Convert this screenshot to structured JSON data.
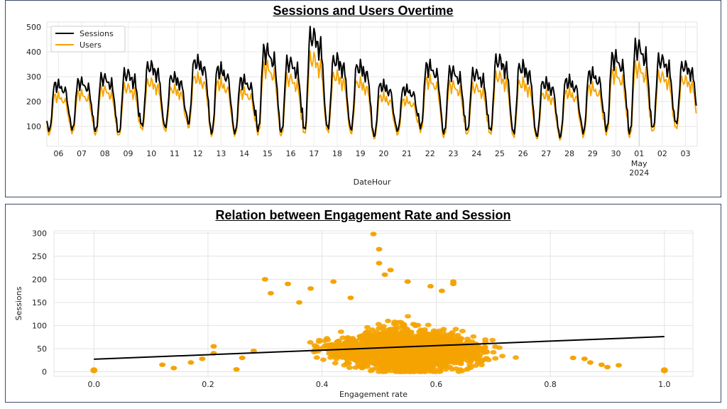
{
  "chart_data": [
    {
      "type": "line",
      "title": "Sessions and Users Overtime",
      "xlabel": "DateHour",
      "ylabel": "",
      "ylim": [
        20,
        520
      ],
      "yticks": [
        100,
        200,
        300,
        400,
        500
      ],
      "xticks": [
        "06",
        "07",
        "08",
        "09",
        "10",
        "11",
        "12",
        "13",
        "14",
        "15",
        "16",
        "17",
        "18",
        "19",
        "20",
        "21",
        "22",
        "23",
        "24",
        "25",
        "26",
        "27",
        "28",
        "29",
        "30",
        "01",
        "02",
        "03"
      ],
      "x_extra_labels": [
        "May",
        "2024"
      ],
      "legend": "top-left",
      "grid": true,
      "series": [
        {
          "name": "Sessions",
          "color": "#000000",
          "daily_values": [
            {
              "date": "06",
              "min": 80,
              "peak": 290
            },
            {
              "date": "07",
              "min": 85,
              "peak": 300
            },
            {
              "date": "08",
              "min": 80,
              "peak": 320
            },
            {
              "date": "09",
              "min": 70,
              "peak": 340
            },
            {
              "date": "10",
              "min": 100,
              "peak": 370
            },
            {
              "date": "11",
              "min": 95,
              "peak": 320
            },
            {
              "date": "12",
              "min": 110,
              "peak": 390
            },
            {
              "date": "13",
              "min": 70,
              "peak": 360
            },
            {
              "date": "14",
              "min": 70,
              "peak": 310
            },
            {
              "date": "15",
              "min": 80,
              "peak": 440
            },
            {
              "date": "16",
              "min": 75,
              "peak": 390
            },
            {
              "date": "17",
              "min": 80,
              "peak": 510
            },
            {
              "date": "18",
              "min": 90,
              "peak": 400
            },
            {
              "date": "19",
              "min": 85,
              "peak": 370
            },
            {
              "date": "20",
              "min": 60,
              "peak": 290
            },
            {
              "date": "21",
              "min": 80,
              "peak": 270
            },
            {
              "date": "22",
              "min": 90,
              "peak": 370
            },
            {
              "date": "23",
              "min": 70,
              "peak": 350
            },
            {
              "date": "24",
              "min": 80,
              "peak": 340
            },
            {
              "date": "25",
              "min": 80,
              "peak": 400
            },
            {
              "date": "26",
              "min": 70,
              "peak": 370
            },
            {
              "date": "27",
              "min": 60,
              "peak": 300
            },
            {
              "date": "28",
              "min": 55,
              "peak": 310
            },
            {
              "date": "29",
              "min": 70,
              "peak": 340
            },
            {
              "date": "30",
              "min": 80,
              "peak": 410
            },
            {
              "date": "01",
              "min": 70,
              "peak": 460
            },
            {
              "date": "02",
              "min": 90,
              "peak": 400
            },
            {
              "date": "03",
              "min": 110,
              "peak": 370
            }
          ]
        },
        {
          "name": "Users",
          "color": "#f5a300",
          "daily_values": [
            {
              "date": "06",
              "min": 65,
              "peak": 240
            },
            {
              "date": "07",
              "min": 70,
              "peak": 250
            },
            {
              "date": "08",
              "min": 65,
              "peak": 270
            },
            {
              "date": "09",
              "min": 60,
              "peak": 280
            },
            {
              "date": "10",
              "min": 85,
              "peak": 300
            },
            {
              "date": "11",
              "min": 80,
              "peak": 270
            },
            {
              "date": "12",
              "min": 95,
              "peak": 320
            },
            {
              "date": "13",
              "min": 60,
              "peak": 300
            },
            {
              "date": "14",
              "min": 60,
              "peak": 260
            },
            {
              "date": "15",
              "min": 65,
              "peak": 370
            },
            {
              "date": "16",
              "min": 60,
              "peak": 320
            },
            {
              "date": "17",
              "min": 65,
              "peak": 410
            },
            {
              "date": "18",
              "min": 75,
              "peak": 330
            },
            {
              "date": "19",
              "min": 70,
              "peak": 300
            },
            {
              "date": "20",
              "min": 50,
              "peak": 240
            },
            {
              "date": "21",
              "min": 65,
              "peak": 220
            },
            {
              "date": "22",
              "min": 75,
              "peak": 310
            },
            {
              "date": "23",
              "min": 55,
              "peak": 290
            },
            {
              "date": "24",
              "min": 65,
              "peak": 280
            },
            {
              "date": "25",
              "min": 65,
              "peak": 330
            },
            {
              "date": "26",
              "min": 55,
              "peak": 300
            },
            {
              "date": "27",
              "min": 50,
              "peak": 250
            },
            {
              "date": "28",
              "min": 45,
              "peak": 260
            },
            {
              "date": "29",
              "min": 55,
              "peak": 280
            },
            {
              "date": "30",
              "min": 65,
              "peak": 340
            },
            {
              "date": "01",
              "min": 55,
              "peak": 370
            },
            {
              "date": "02",
              "min": 75,
              "peak": 330
            },
            {
              "date": "03",
              "min": 90,
              "peak": 310
            }
          ]
        }
      ]
    },
    {
      "type": "scatter",
      "title": "Relation between Engagement Rate and Session",
      "xlabel": "Engagement rate",
      "ylabel": "Sessions",
      "xlim": [
        -0.07,
        1.05
      ],
      "ylim": [
        -10,
        305
      ],
      "xticks": [
        "0.0",
        "0.2",
        "0.4",
        "0.6",
        "0.8",
        "1.0"
      ],
      "yticks": [
        "0",
        "50",
        "100",
        "150",
        "200",
        "250",
        "300"
      ],
      "grid": true,
      "point_color": "#f5a300",
      "trendline": {
        "color": "#000000",
        "x": [
          0.0,
          1.0
        ],
        "y": [
          27,
          76
        ]
      },
      "cloud": {
        "x_range": [
          0.25,
          0.83
        ],
        "center_x": 0.55,
        "typical_y_range": [
          0,
          130
        ]
      },
      "outliers": [
        {
          "x": 0.0,
          "y": 3
        },
        {
          "x": 1.0,
          "y": 3
        },
        {
          "x": 0.12,
          "y": 15
        },
        {
          "x": 0.14,
          "y": 8
        },
        {
          "x": 0.17,
          "y": 20
        },
        {
          "x": 0.19,
          "y": 28
        },
        {
          "x": 0.21,
          "y": 40
        },
        {
          "x": 0.21,
          "y": 55
        },
        {
          "x": 0.25,
          "y": 5
        },
        {
          "x": 0.26,
          "y": 30
        },
        {
          "x": 0.28,
          "y": 45
        },
        {
          "x": 0.3,
          "y": 200
        },
        {
          "x": 0.31,
          "y": 170
        },
        {
          "x": 0.34,
          "y": 190
        },
        {
          "x": 0.36,
          "y": 150
        },
        {
          "x": 0.38,
          "y": 180
        },
        {
          "x": 0.42,
          "y": 195
        },
        {
          "x": 0.45,
          "y": 160
        },
        {
          "x": 0.49,
          "y": 298
        },
        {
          "x": 0.5,
          "y": 265
        },
        {
          "x": 0.5,
          "y": 235
        },
        {
          "x": 0.51,
          "y": 210
        },
        {
          "x": 0.52,
          "y": 220
        },
        {
          "x": 0.55,
          "y": 195
        },
        {
          "x": 0.59,
          "y": 185
        },
        {
          "x": 0.61,
          "y": 175
        },
        {
          "x": 0.63,
          "y": 190
        },
        {
          "x": 0.63,
          "y": 195
        },
        {
          "x": 0.51,
          "y": 3
        },
        {
          "x": 0.84,
          "y": 30
        },
        {
          "x": 0.86,
          "y": 28
        },
        {
          "x": 0.87,
          "y": 20
        },
        {
          "x": 0.89,
          "y": 15
        },
        {
          "x": 0.9,
          "y": 10
        },
        {
          "x": 0.92,
          "y": 14
        }
      ]
    }
  ]
}
